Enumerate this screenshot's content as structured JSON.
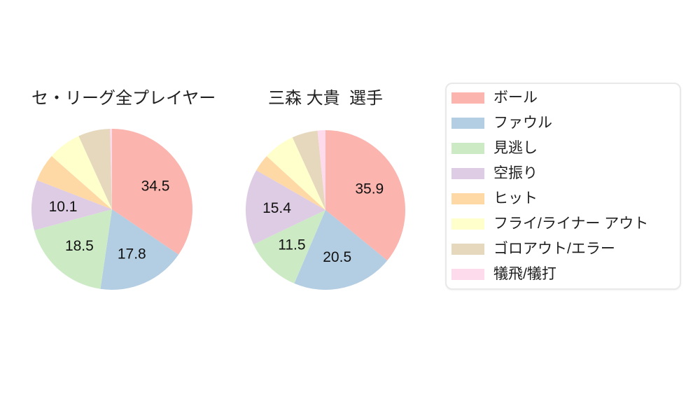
{
  "page": {
    "background": "#ffffff"
  },
  "palette": [
    "#fbb4ae",
    "#b3cde3",
    "#ccebc5",
    "#decbe4",
    "#fed9a6",
    "#ffffcc",
    "#e5d8bd",
    "#fddaec"
  ],
  "chart_data": [
    {
      "type": "pie",
      "title": "セ・リーグ全プレイヤー",
      "labels": [
        "ボール",
        "ファウル",
        "見逃し",
        "空振り",
        "ヒット",
        "フライ/ライナー アウト",
        "ゴロアウト/エラー",
        "犠飛/犠打"
      ],
      "values": [
        34.5,
        17.8,
        18.5,
        10.1,
        5.6,
        6.7,
        6.4,
        0.4
      ],
      "colors": [
        "#fbb4ae",
        "#b3cde3",
        "#ccebc5",
        "#decbe4",
        "#fed9a6",
        "#ffffcc",
        "#e5d8bd",
        "#fddaec"
      ],
      "start_angle_deg": 0,
      "direction": "clockwise",
      "show_labels_min_pct": 10,
      "shown_value_labels": [
        "34.5",
        "17.8",
        "18.5",
        "10.1"
      ]
    },
    {
      "type": "pie",
      "title": "三森 大貴  選手",
      "labels": [
        "ボール",
        "ファウル",
        "見逃し",
        "空振り",
        "ヒット",
        "フライ/ライナー アウト",
        "ゴロアウト/エラー",
        "犠飛/犠打"
      ],
      "values": [
        35.9,
        20.5,
        11.5,
        15.4,
        3.5,
        6.4,
        5.2,
        1.6
      ],
      "colors": [
        "#fbb4ae",
        "#b3cde3",
        "#ccebc5",
        "#decbe4",
        "#fed9a6",
        "#ffffcc",
        "#e5d8bd",
        "#fddaec"
      ],
      "start_angle_deg": 0,
      "direction": "clockwise",
      "show_labels_min_pct": 10,
      "shown_value_labels": [
        "35.9",
        "20.5",
        "11.5",
        "15.4"
      ]
    }
  ],
  "legend": {
    "position": "right",
    "items": [
      {
        "label": "ボール",
        "color": "#fbb4ae"
      },
      {
        "label": "ファウル",
        "color": "#b3cde3"
      },
      {
        "label": "見逃し",
        "color": "#ccebc5"
      },
      {
        "label": "空振り",
        "color": "#decbe4"
      },
      {
        "label": "ヒット",
        "color": "#fed9a6"
      },
      {
        "label": "フライ/ライナー アウト",
        "color": "#ffffcc"
      },
      {
        "label": "ゴロアウト/エラー",
        "color": "#e5d8bd"
      },
      {
        "label": "犠飛/犠打",
        "color": "#fddaec"
      }
    ]
  }
}
